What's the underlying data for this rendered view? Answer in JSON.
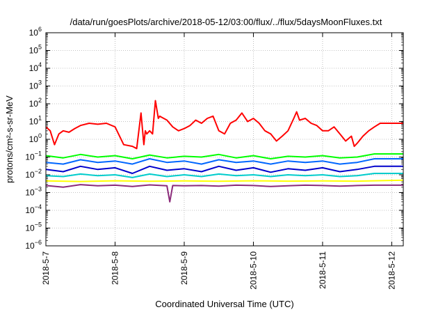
{
  "chart_data": {
    "type": "line",
    "title": "/data/run/goesPlots/archive/2018-05-12/03:00/flux/../flux/5daysMoonFluxes.txt",
    "xlabel": "Coordinated Universal Time (UTC)",
    "ylabel": "protons/cm²-s-sr-MeV",
    "xscale": "time",
    "yscale": "log",
    "xlim": [
      "2018-05-07",
      "2018-05-12 04:00"
    ],
    "ylim": [
      1e-06,
      1000000.0
    ],
    "grid": true,
    "legend": "none",
    "x_ticks": [
      "2018-5-7",
      "2018-5-8",
      "2018-5-9",
      "2018-5-10",
      "2018-5-11",
      "2018-5-12"
    ],
    "y_tick_exponents": [
      -6,
      -5,
      -4,
      -3,
      -2,
      -1,
      0,
      1,
      2,
      3,
      4,
      5,
      6
    ],
    "y_tick_base": "10",
    "series": [
      {
        "color": "#ff0000",
        "x": [
          "2018-05-07 00:00",
          "2018-05-07 01:30",
          "2018-05-07 03:00",
          "2018-05-07 04:30",
          "2018-05-07 06:00",
          "2018-05-07 08:00",
          "2018-05-07 10:00",
          "2018-05-07 12:00",
          "2018-05-07 15:00",
          "2018-05-07 18:00",
          "2018-05-07 21:00",
          "2018-05-08 00:00",
          "2018-05-08 03:00",
          "2018-05-08 06:00",
          "2018-05-08 07:30",
          "2018-05-08 09:00",
          "2018-05-08 10:00",
          "2018-05-08 10:30",
          "2018-05-08 11:00",
          "2018-05-08 12:00",
          "2018-05-08 13:00",
          "2018-05-08 14:00",
          "2018-05-08 15:00",
          "2018-05-08 15:30",
          "2018-05-08 16:00",
          "2018-05-08 18:00",
          "2018-05-08 20:00",
          "2018-05-08 22:00",
          "2018-05-09 00:00",
          "2018-05-09 02:00",
          "2018-05-09 04:00",
          "2018-05-09 06:00",
          "2018-05-09 08:00",
          "2018-05-09 10:00",
          "2018-05-09 12:00",
          "2018-05-09 14:00",
          "2018-05-09 16:00",
          "2018-05-09 18:00",
          "2018-05-09 20:00",
          "2018-05-09 22:00",
          "2018-05-10 00:00",
          "2018-05-10 02:00",
          "2018-05-10 04:00",
          "2018-05-10 06:00",
          "2018-05-10 08:00",
          "2018-05-10 10:00",
          "2018-05-10 12:00",
          "2018-05-10 14:00",
          "2018-05-10 15:00",
          "2018-05-10 16:00",
          "2018-05-10 18:00",
          "2018-05-10 20:00",
          "2018-05-10 22:00",
          "2018-05-11 00:00",
          "2018-05-11 02:00",
          "2018-05-11 04:00",
          "2018-05-11 06:00",
          "2018-05-11 08:00",
          "2018-05-11 10:00",
          "2018-05-11 11:00",
          "2018-05-11 12:00",
          "2018-05-11 14:00",
          "2018-05-11 16:00",
          "2018-05-11 18:00",
          "2018-05-11 20:00",
          "2018-05-12 00:00",
          "2018-05-12 04:00"
        ],
        "values": [
          5,
          3,
          0.5,
          2,
          3,
          2.5,
          4,
          6,
          8,
          7,
          8,
          5,
          0.5,
          0.4,
          0.3,
          30,
          0.5,
          3,
          2,
          3,
          2,
          150,
          15,
          20,
          18,
          12,
          5,
          3,
          4,
          6,
          12,
          8,
          15,
          20,
          3,
          2,
          8,
          12,
          30,
          10,
          15,
          8,
          3,
          2,
          0.8,
          1.5,
          3,
          15,
          35,
          12,
          15,
          8,
          6,
          3,
          3,
          5,
          2,
          0.8,
          1.5,
          0.4,
          0.6,
          1.5,
          3,
          5,
          8,
          8,
          8
        ]
      },
      {
        "color": "#00ff00",
        "x": [
          "2018-05-07 00:00",
          "2018-05-07 06:00",
          "2018-05-07 12:00",
          "2018-05-07 18:00",
          "2018-05-08 00:00",
          "2018-05-08 06:00",
          "2018-05-08 12:00",
          "2018-05-08 18:00",
          "2018-05-09 00:00",
          "2018-05-09 06:00",
          "2018-05-09 12:00",
          "2018-05-09 18:00",
          "2018-05-10 00:00",
          "2018-05-10 06:00",
          "2018-05-10 12:00",
          "2018-05-10 18:00",
          "2018-05-11 00:00",
          "2018-05-11 06:00",
          "2018-05-11 12:00",
          "2018-05-11 18:00",
          "2018-05-12 04:00"
        ],
        "values": [
          0.12,
          0.09,
          0.14,
          0.1,
          0.12,
          0.08,
          0.13,
          0.09,
          0.11,
          0.1,
          0.14,
          0.09,
          0.12,
          0.08,
          0.11,
          0.1,
          0.12,
          0.09,
          0.1,
          0.15,
          0.15
        ]
      },
      {
        "color": "#0066ff",
        "x": [
          "2018-05-07 00:00",
          "2018-05-07 06:00",
          "2018-05-07 12:00",
          "2018-05-07 18:00",
          "2018-05-08 00:00",
          "2018-05-08 06:00",
          "2018-05-08 12:00",
          "2018-05-08 18:00",
          "2018-05-09 00:00",
          "2018-05-09 06:00",
          "2018-05-09 12:00",
          "2018-05-09 18:00",
          "2018-05-10 00:00",
          "2018-05-10 06:00",
          "2018-05-10 12:00",
          "2018-05-10 18:00",
          "2018-05-11 00:00",
          "2018-05-11 06:00",
          "2018-05-11 12:00",
          "2018-05-11 18:00",
          "2018-05-12 04:00"
        ],
        "values": [
          0.05,
          0.04,
          0.07,
          0.05,
          0.06,
          0.04,
          0.08,
          0.05,
          0.06,
          0.04,
          0.07,
          0.05,
          0.06,
          0.04,
          0.06,
          0.05,
          0.06,
          0.04,
          0.05,
          0.08,
          0.08
        ]
      },
      {
        "color": "#0000cc",
        "x": [
          "2018-05-07 00:00",
          "2018-05-07 06:00",
          "2018-05-07 12:00",
          "2018-05-07 18:00",
          "2018-05-08 00:00",
          "2018-05-08 06:00",
          "2018-05-08 12:00",
          "2018-05-08 18:00",
          "2018-05-09 00:00",
          "2018-05-09 06:00",
          "2018-05-09 12:00",
          "2018-05-09 18:00",
          "2018-05-10 00:00",
          "2018-05-10 06:00",
          "2018-05-10 12:00",
          "2018-05-10 18:00",
          "2018-05-11 00:00",
          "2018-05-11 06:00",
          "2018-05-11 12:00",
          "2018-05-11 18:00",
          "2018-05-12 04:00"
        ],
        "values": [
          0.02,
          0.015,
          0.03,
          0.02,
          0.025,
          0.012,
          0.03,
          0.018,
          0.022,
          0.015,
          0.03,
          0.018,
          0.025,
          0.014,
          0.022,
          0.018,
          0.025,
          0.015,
          0.02,
          0.03,
          0.03
        ]
      },
      {
        "color": "#00cccc",
        "x": [
          "2018-05-07 00:00",
          "2018-05-07 06:00",
          "2018-05-07 12:00",
          "2018-05-07 18:00",
          "2018-05-08 00:00",
          "2018-05-08 06:00",
          "2018-05-08 12:00",
          "2018-05-08 18:00",
          "2018-05-09 00:00",
          "2018-05-09 06:00",
          "2018-05-09 12:00",
          "2018-05-09 18:00",
          "2018-05-10 00:00",
          "2018-05-10 06:00",
          "2018-05-10 12:00",
          "2018-05-10 18:00",
          "2018-05-11 00:00",
          "2018-05-11 06:00",
          "2018-05-11 12:00",
          "2018-05-11 18:00",
          "2018-05-12 04:00"
        ],
        "values": [
          0.009,
          0.008,
          0.011,
          0.009,
          0.01,
          0.007,
          0.011,
          0.008,
          0.01,
          0.008,
          0.011,
          0.009,
          0.01,
          0.008,
          0.01,
          0.009,
          0.01,
          0.008,
          0.009,
          0.012,
          0.012
        ]
      },
      {
        "color": "#ffff00",
        "x": [
          "2018-05-07 00:00",
          "2018-05-07 12:00",
          "2018-05-08 00:00",
          "2018-05-08 12:00",
          "2018-05-09 00:00",
          "2018-05-09 12:00",
          "2018-05-10 00:00",
          "2018-05-10 12:00",
          "2018-05-11 00:00",
          "2018-05-11 12:00",
          "2018-05-12 04:00"
        ],
        "values": [
          0.0045,
          0.0042,
          0.0046,
          0.0043,
          0.0045,
          0.0043,
          0.0046,
          0.0044,
          0.0045,
          0.0044,
          0.005
        ]
      },
      {
        "color": "#8b2a7a",
        "x": [
          "2018-05-07 00:00",
          "2018-05-07 06:00",
          "2018-05-07 12:00",
          "2018-05-07 18:00",
          "2018-05-08 00:00",
          "2018-05-08 06:00",
          "2018-05-08 12:00",
          "2018-05-08 18:00",
          "2018-05-08 19:00",
          "2018-05-08 20:00",
          "2018-05-09 00:00",
          "2018-05-09 06:00",
          "2018-05-09 12:00",
          "2018-05-09 18:00",
          "2018-05-10 00:00",
          "2018-05-10 06:00",
          "2018-05-10 12:00",
          "2018-05-10 18:00",
          "2018-05-11 00:00",
          "2018-05-11 06:00",
          "2018-05-11 12:00",
          "2018-05-11 18:00",
          "2018-05-12 04:00"
        ],
        "values": [
          0.0025,
          0.002,
          0.0028,
          0.0024,
          0.0026,
          0.0022,
          0.0027,
          0.0024,
          0.0003,
          0.0025,
          0.0024,
          0.0025,
          0.0023,
          0.0026,
          0.0025,
          0.0022,
          0.0024,
          0.0026,
          0.0025,
          0.0023,
          0.0025,
          0.0026,
          0.0026
        ]
      }
    ]
  }
}
